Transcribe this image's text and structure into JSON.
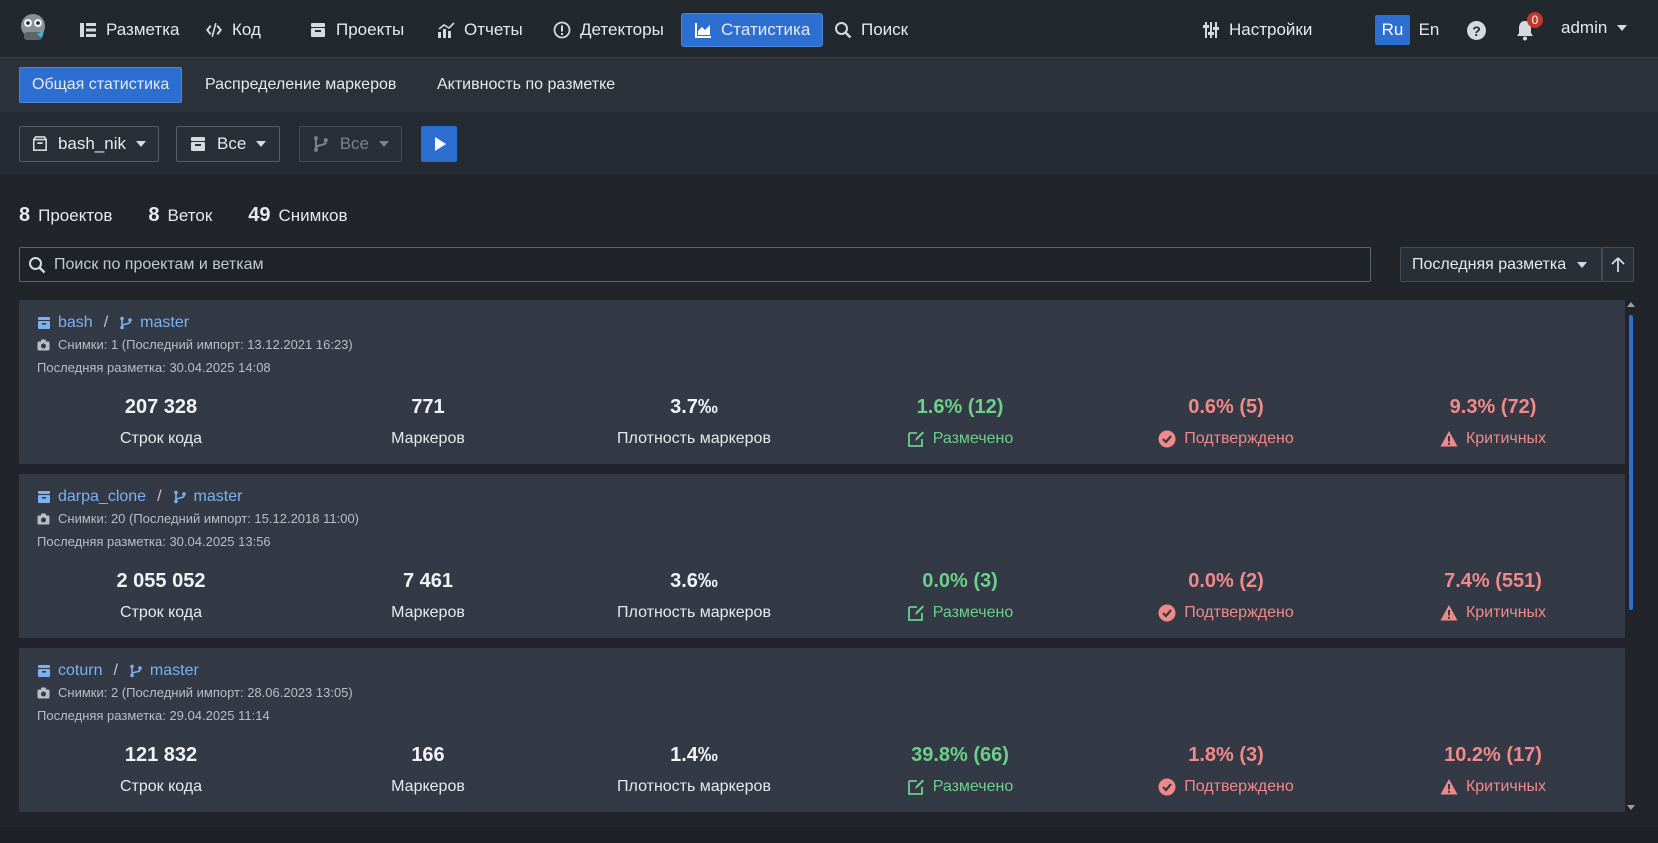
{
  "nav": {
    "items": [
      {
        "label": "Разметка",
        "icon": "list-icon"
      },
      {
        "label": "Код",
        "icon": "code-icon"
      },
      {
        "label": "Проекты",
        "icon": "archive-icon"
      },
      {
        "label": "Отчеты",
        "icon": "chart-icon"
      },
      {
        "label": "Детекторы",
        "icon": "alert-circle-icon"
      },
      {
        "label": "Статистика",
        "icon": "area-chart-icon",
        "active": true
      },
      {
        "label": "Поиск",
        "icon": "search-icon"
      }
    ],
    "settings_label": "Настройки",
    "lang_ru": "Ru",
    "lang_en": "En",
    "help_label": "?",
    "notifications_count": "0",
    "user_label": "admin",
    "accent_color": "#2d6fd1"
  },
  "subtabs": [
    {
      "label": "Общая статистика",
      "active": true
    },
    {
      "label": "Распределение маркеров"
    },
    {
      "label": "Активность по разметке"
    }
  ],
  "filters": {
    "project": "bash_nik",
    "scope": "Все",
    "branch": "Все"
  },
  "counters": {
    "projects_num": "8",
    "projects_label": "Проектов",
    "branches_num": "8",
    "branches_label": "Веток",
    "snapshots_num": "49",
    "snapshots_label": "Снимков"
  },
  "search": {
    "placeholder": "Поиск по проектам и веткам",
    "sort_label": "Последняя разметка"
  },
  "captions": {
    "loc": "Строк кода",
    "markers": "Маркеров",
    "density": "Плотность маркеров",
    "marked": "Размечено",
    "confirmed": "Подтверждено",
    "critical": "Критичных"
  },
  "cards": [
    {
      "project": "bash",
      "sep": "/",
      "branch": "master",
      "snapshots": "Снимки: 1 (Последний импорт: 13.12.2021 16:23)",
      "last_markup": "Последняя разметка: 30.04.2025 14:08",
      "loc": "207 328",
      "markers": "771",
      "density": "3.7‰",
      "marked": "1.6% (12)",
      "confirmed": "0.6% (5)",
      "critical": "9.3% (72)"
    },
    {
      "project": "darpa_clone",
      "sep": "/",
      "branch": "master",
      "snapshots": "Снимки: 20 (Последний импорт: 15.12.2018 11:00)",
      "last_markup": "Последняя разметка: 30.04.2025 13:56",
      "loc": "2 055 052",
      "markers": "7 461",
      "density": "3.6‰",
      "marked": "0.0% (3)",
      "confirmed": "0.0% (2)",
      "critical": "7.4% (551)"
    },
    {
      "project": "coturn",
      "sep": "/",
      "branch": "master",
      "snapshots": "Снимки: 2 (Последний импорт: 28.06.2023 13:05)",
      "last_markup": "Последняя разметка: 29.04.2025 11:14",
      "loc": "121 832",
      "markers": "166",
      "density": "1.4‰",
      "marked": "39.8% (66)",
      "confirmed": "1.8% (3)",
      "critical": "10.2% (17)"
    }
  ]
}
